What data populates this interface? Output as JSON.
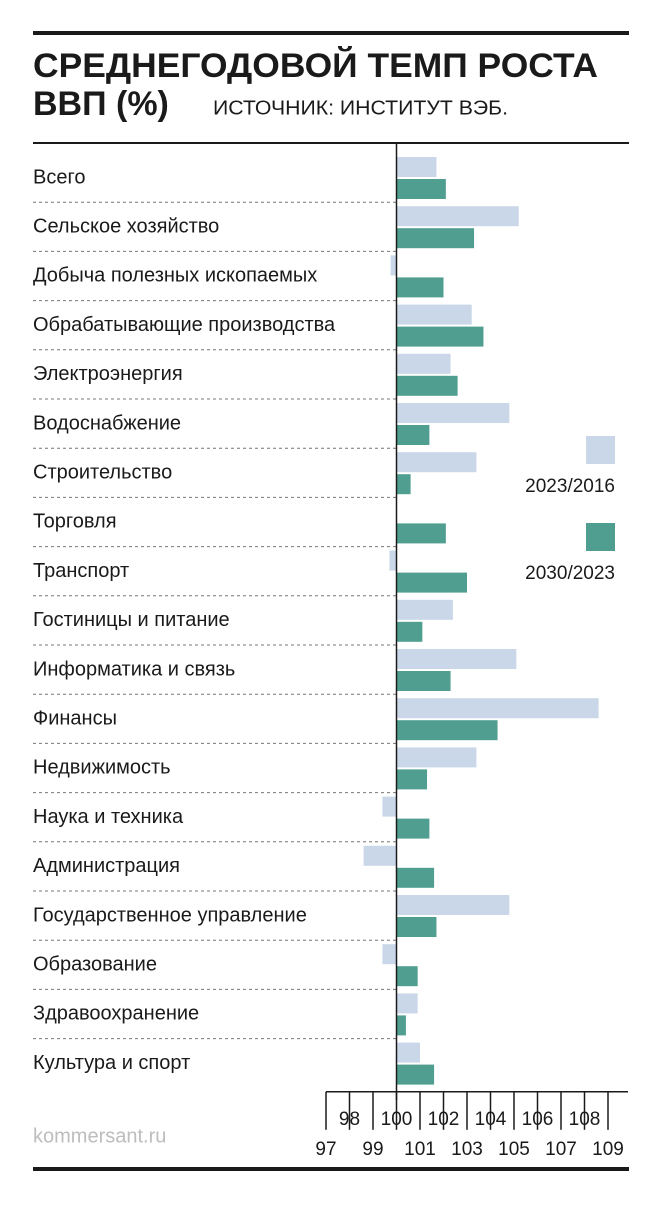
{
  "chart_data": {
    "type": "barh",
    "title": [
      "СРЕДНЕГОДОВОЙ ТЕМП РОСТА",
      "ВВП (%)"
    ],
    "subtitle": "ИСТОЧНИК: ИНСТИТУТ ВЭБ.",
    "credit": "kommersant.ru",
    "categories": [
      "Всего",
      "Сельское хозяйство",
      "Добыча полезных ископаемых",
      "Обрабатывающие производства",
      "Электроэнергия",
      "Водоснабжение",
      "Строительство",
      "Торговля",
      "Транспорт",
      "Гостиницы и питание",
      "Информатика и связь",
      "Финансы",
      "Недвижимость",
      "Наука и техника",
      "Администрация",
      "Государственное управление",
      "Образование",
      "Здравоохранение",
      "Культура и спорт"
    ],
    "series": [
      {
        "name": "2023/2016",
        "color": "#c9d7e8",
        "values": [
          101.7,
          105.2,
          99.75,
          103.2,
          102.3,
          104.8,
          103.4,
          100.0,
          99.7,
          102.4,
          105.1,
          108.6,
          103.4,
          99.4,
          98.6,
          104.8,
          99.4,
          100.9,
          101.0
        ]
      },
      {
        "name": "2030/2023",
        "color": "#4f9e8f",
        "values": [
          102.1,
          103.3,
          102.0,
          103.7,
          102.6,
          101.4,
          100.6,
          102.1,
          103.0,
          101.1,
          102.3,
          104.3,
          101.3,
          101.4,
          101.6,
          101.7,
          100.9,
          100.4,
          101.6
        ]
      }
    ],
    "baseline": 100,
    "xlim": [
      97,
      109
    ],
    "xticks": [
      97,
      98,
      99,
      100,
      101,
      102,
      103,
      104,
      105,
      106,
      107,
      108,
      109
    ]
  }
}
